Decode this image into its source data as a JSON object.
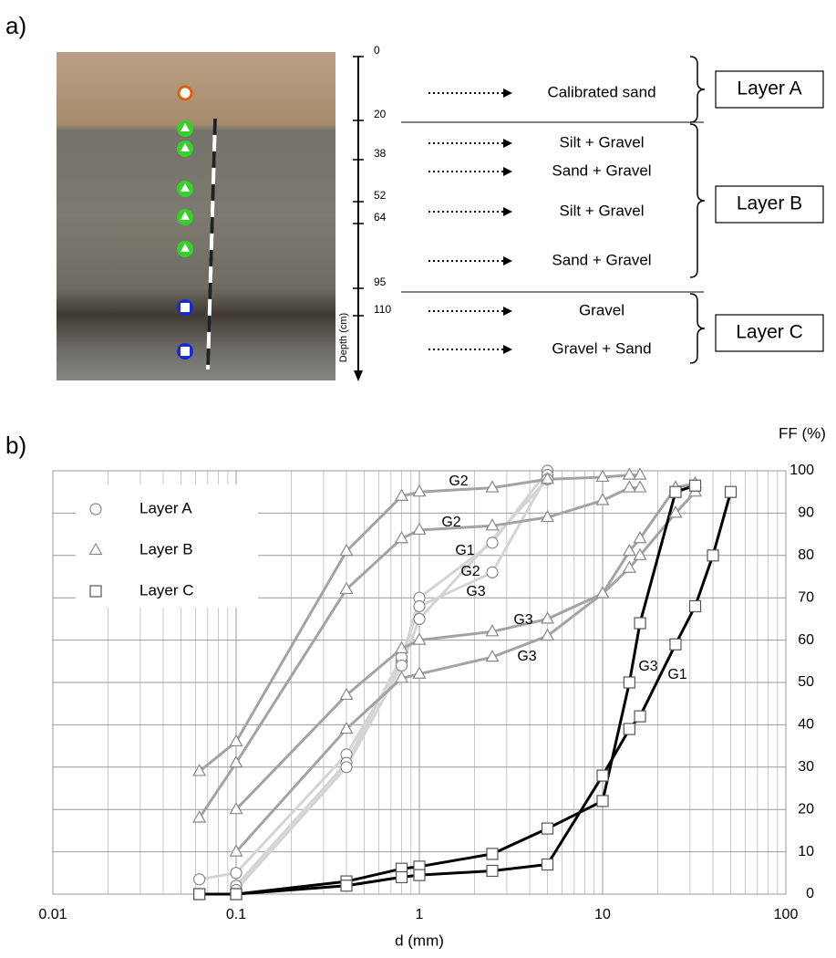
{
  "panel_a": {
    "panel_label": "a)",
    "depth_label": "Depth (cm)",
    "depth_ticks": [
      0,
      20,
      38,
      52,
      64,
      95,
      110
    ],
    "materials": [
      "Calibrated sand",
      "Silt + Gravel",
      "Sand + Gravel",
      "Silt + Gravel",
      "Sand + Gravel",
      "Gravel",
      "Gravel + Sand"
    ],
    "units": [
      "Layer A",
      "Layer B",
      "Layer C"
    ]
  },
  "chart_data": {
    "type": "line",
    "panel_label": "b)",
    "x_label": "d (mm)",
    "y_label": "FF (%)",
    "xscale": "log",
    "xlim": [
      0.01,
      100
    ],
    "xticks": [
      0.01,
      0.1,
      1,
      10,
      100
    ],
    "ylim": [
      0,
      100
    ],
    "yticks": [
      0,
      10,
      20,
      30,
      40,
      50,
      60,
      70,
      80,
      90,
      100
    ],
    "grid": true,
    "legend": "upper left",
    "series": [
      {
        "name": "Layer A",
        "color": "#d4d4d4",
        "marker": "circle",
        "lines": [
          {
            "label": "G1",
            "x": [
              0.063,
              0.1,
              0.4,
              0.8,
              1,
              2.5,
              5
            ],
            "values": [
              3.5,
              5,
              33,
              55,
              70,
              83,
              100
            ]
          },
          {
            "label": "G2",
            "x": [
              0.1,
              0.4,
              0.8,
              1,
              2.5,
              5
            ],
            "values": [
              2,
              31,
              56,
              68,
              76,
              99
            ]
          },
          {
            "label": "G3",
            "x": [
              0.1,
              0.4,
              0.8,
              1,
              5
            ],
            "values": [
              1,
              30,
              54,
              65,
              98
            ]
          }
        ]
      },
      {
        "name": "Layer B",
        "color": "#a3a3a3",
        "marker": "triangle",
        "lines": [
          {
            "label": "G2",
            "x": [
              0.063,
              0.1,
              0.4,
              0.8,
              1,
              2.5,
              5,
              10,
              14,
              16
            ],
            "values": [
              29,
              36,
              81,
              94,
              95,
              96,
              98,
              98.5,
              99,
              99
            ]
          },
          {
            "label": "G2",
            "x": [
              0.063,
              0.1,
              0.4,
              0.8,
              1,
              2.5,
              5,
              10,
              14,
              16
            ],
            "values": [
              18,
              31,
              72,
              84,
              86,
              87,
              89,
              93,
              96,
              96
            ]
          },
          {
            "label": "G3",
            "x": [
              0.1,
              0.4,
              0.8,
              1,
              2.5,
              5,
              10,
              14,
              16,
              25,
              32
            ],
            "values": [
              20,
              47,
              58,
              60,
              62,
              65,
              71,
              81,
              84,
              96,
              97
            ]
          },
          {
            "label": "G3",
            "x": [
              0.1,
              0.4,
              0.8,
              1,
              2.5,
              5,
              10,
              14,
              16,
              25,
              32
            ],
            "values": [
              10,
              39,
              51,
              52,
              56,
              61,
              71,
              77,
              80,
              90,
              95
            ]
          }
        ]
      },
      {
        "name": "Layer C",
        "color": "#000000",
        "marker": "square",
        "lines": [
          {
            "label": "G3",
            "x": [
              0.063,
              0.1,
              0.4,
              0.8,
              1,
              2.5,
              5,
              10,
              14,
              16,
              25,
              32
            ],
            "values": [
              0,
              0,
              3,
              6,
              6.5,
              9.5,
              15.5,
              22,
              50,
              64,
              95,
              96.5
            ]
          },
          {
            "label": "G1",
            "x": [
              0.063,
              0.1,
              0.4,
              0.8,
              1,
              2.5,
              5,
              10,
              14,
              16,
              25,
              32,
              40,
              50
            ],
            "values": [
              0,
              0,
              2,
              4,
              4.5,
              5.5,
              7,
              28,
              39,
              42,
              59,
              68,
              80,
              95
            ]
          }
        ]
      }
    ]
  }
}
